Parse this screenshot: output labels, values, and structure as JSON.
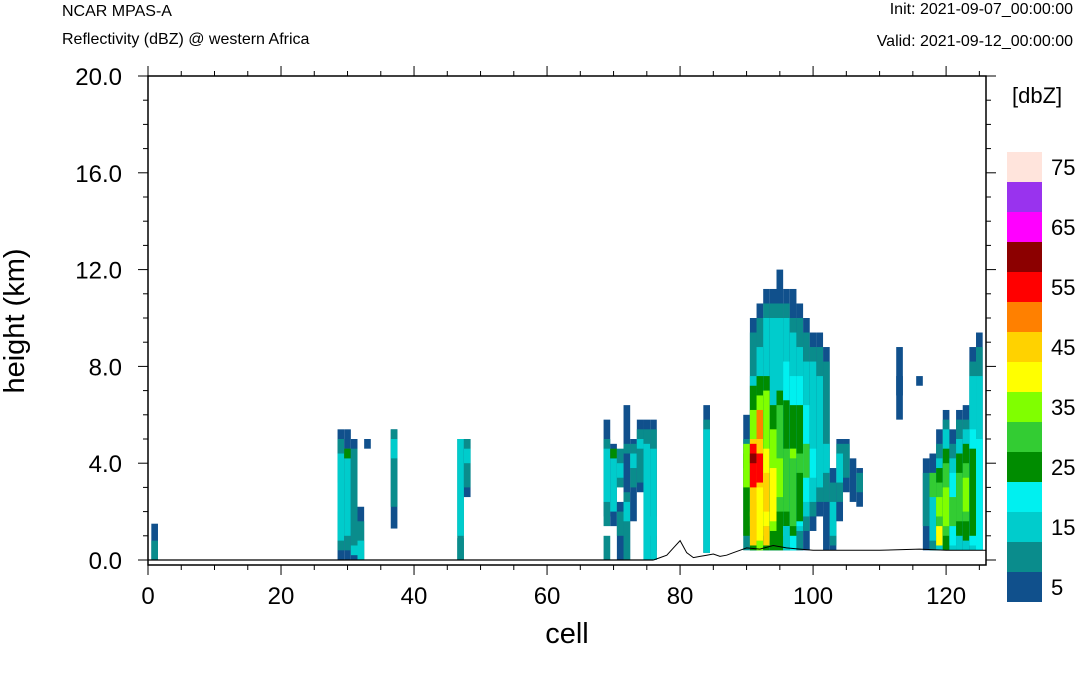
{
  "header": {
    "model": "NCAR MPAS-A",
    "field": "Reflectivity (dBZ) @ western Africa",
    "init": "Init: 2021-09-07_00:00:00",
    "valid": "Valid: 2021-09-12_00:00:00"
  },
  "chart_data": {
    "type": "heatmap",
    "xlabel": "cell",
    "ylabel": "height (km)",
    "xlim": [
      0,
      126
    ],
    "ylim": [
      0,
      20
    ],
    "x_ticks": [
      "0",
      "20",
      "40",
      "60",
      "80",
      "100",
      "120"
    ],
    "y_ticks": [
      "0.0",
      "4.0",
      "8.0",
      "12.0",
      "16.0",
      "20.0"
    ],
    "colorbar": {
      "unit": "[dbZ]",
      "labels": [
        "5",
        "15",
        "25",
        "35",
        "45",
        "55",
        "65",
        "75"
      ],
      "levels": [
        5,
        10,
        15,
        20,
        25,
        30,
        35,
        40,
        45,
        50,
        55,
        60,
        65,
        70,
        75
      ],
      "colors": [
        "#10508c",
        "#0a8c8c",
        "#00cccc",
        "#00f0f0",
        "#008c00",
        "#33cc33",
        "#80ff00",
        "#ffff00",
        "#ffd200",
        "#ff8000",
        "#ff0000",
        "#8c0000",
        "#ff00ff",
        "#9933ee",
        "#ffe4dc"
      ]
    },
    "columns": [
      {
        "x": 1,
        "segments": [
          [
            0.0,
            1.5,
            5
          ],
          [
            0.0,
            0.8,
            10
          ]
        ]
      },
      {
        "x": 29,
        "segments": [
          [
            0.0,
            5.4,
            5
          ],
          [
            0.4,
            5.0,
            10
          ],
          [
            0.8,
            4.4,
            15
          ],
          [
            2.0,
            3.2,
            15
          ]
        ]
      },
      {
        "x": 30,
        "segments": [
          [
            0.0,
            5.4,
            5
          ],
          [
            0.4,
            4.6,
            10
          ],
          [
            1.0,
            4.2,
            15
          ],
          [
            4.2,
            4.6,
            25
          ]
        ]
      },
      {
        "x": 31,
        "segments": [
          [
            0.0,
            5.0,
            5
          ],
          [
            0.4,
            4.6,
            10
          ],
          [
            0.2,
            0.6,
            15
          ]
        ]
      },
      {
        "x": 32,
        "segments": [
          [
            0.0,
            2.2,
            5
          ],
          [
            0.0,
            1.6,
            10
          ],
          [
            0.0,
            0.8,
            15
          ]
        ]
      },
      {
        "x": 33,
        "segments": [
          [
            4.6,
            5.0,
            5
          ]
        ]
      },
      {
        "x": 37,
        "segments": [
          [
            1.3,
            5.4,
            5
          ],
          [
            2.2,
            5.4,
            10
          ],
          [
            4.2,
            5.0,
            15
          ]
        ]
      },
      {
        "x": 47,
        "segments": [
          [
            0.0,
            5.0,
            10
          ],
          [
            0.0,
            0.9,
            10
          ],
          [
            1.0,
            5.0,
            15
          ]
        ]
      },
      {
        "x": 48,
        "segments": [
          [
            2.6,
            5.0,
            5
          ],
          [
            3.0,
            5.0,
            10
          ],
          [
            4.0,
            4.6,
            15
          ]
        ]
      },
      {
        "x": 69,
        "segments": [
          [
            1.8,
            5.8,
            5
          ],
          [
            1.4,
            5.0,
            10
          ],
          [
            2.4,
            4.6,
            15
          ],
          [
            0.0,
            1.0,
            10
          ]
        ]
      },
      {
        "x": 70,
        "segments": [
          [
            1.4,
            4.8,
            5
          ],
          [
            2.0,
            4.2,
            15
          ],
          [
            4.2,
            4.6,
            25
          ]
        ]
      },
      {
        "x": 71,
        "segments": [
          [
            0.0,
            2.4,
            5
          ],
          [
            1.0,
            2.0,
            10
          ],
          [
            3.0,
            4.6,
            10
          ],
          [
            3.4,
            4.0,
            15
          ]
        ]
      },
      {
        "x": 72,
        "segments": [
          [
            0.0,
            6.4,
            5
          ],
          [
            0.0,
            2.8,
            10
          ],
          [
            1.6,
            2.4,
            15
          ],
          [
            4.4,
            4.8,
            10
          ]
        ]
      },
      {
        "x": 73,
        "segments": [
          [
            1.6,
            5.0,
            5
          ],
          [
            3.0,
            4.8,
            10
          ],
          [
            3.8,
            4.4,
            15
          ]
        ]
      },
      {
        "x": 74,
        "segments": [
          [
            2.8,
            5.8,
            5
          ],
          [
            3.2,
            5.4,
            10
          ],
          [
            4.6,
            5.0,
            15
          ]
        ]
      },
      {
        "x": 75,
        "segments": [
          [
            0.0,
            5.8,
            5
          ],
          [
            0.0,
            5.4,
            10
          ],
          [
            0.0,
            4.8,
            15
          ]
        ]
      },
      {
        "x": 76,
        "segments": [
          [
            0.0,
            5.8,
            5
          ],
          [
            0.4,
            5.4,
            10
          ],
          [
            1.0,
            4.6,
            15
          ],
          [
            0.0,
            1.8,
            15
          ]
        ]
      },
      {
        "x": 84,
        "segments": [
          [
            0.3,
            6.4,
            5
          ],
          [
            0.3,
            5.8,
            10
          ],
          [
            0.3,
            5.4,
            15
          ]
        ]
      },
      {
        "x": 90,
        "segments": [
          [
            3.8,
            6.0,
            5
          ],
          [
            0.4,
            5.0,
            10
          ],
          [
            1.0,
            4.4,
            25
          ],
          [
            3.0,
            4.8,
            35
          ]
        ]
      },
      {
        "x": 91,
        "segments": [
          [
            0.4,
            10.0,
            5
          ],
          [
            0.4,
            9.4,
            10
          ],
          [
            0.4,
            7.6,
            15
          ],
          [
            0.4,
            7.2,
            25
          ],
          [
            1.4,
            6.2,
            35
          ],
          [
            1.8,
            5.0,
            45
          ],
          [
            3.0,
            4.8,
            55
          ],
          [
            4.0,
            4.4,
            60
          ],
          [
            0.6,
            2.0,
            45
          ]
        ]
      },
      {
        "x": 92,
        "segments": [
          [
            0.4,
            10.6,
            5
          ],
          [
            0.4,
            10.0,
            10
          ],
          [
            0.4,
            8.8,
            15
          ],
          [
            0.4,
            7.6,
            25
          ],
          [
            0.4,
            6.8,
            35
          ],
          [
            0.8,
            6.2,
            50
          ],
          [
            2.4,
            5.0,
            45
          ],
          [
            3.2,
            4.4,
            55
          ],
          [
            0.8,
            3.0,
            40
          ]
        ]
      },
      {
        "x": 93,
        "segments": [
          [
            0.4,
            11.2,
            5
          ],
          [
            0.4,
            10.6,
            10
          ],
          [
            0.4,
            10.0,
            15
          ],
          [
            0.4,
            7.6,
            25
          ],
          [
            1.0,
            7.0,
            35
          ],
          [
            1.4,
            4.6,
            40
          ],
          [
            2.0,
            3.6,
            45
          ],
          [
            0.6,
            1.4,
            45
          ]
        ]
      },
      {
        "x": 94,
        "segments": [
          [
            0.4,
            11.2,
            5
          ],
          [
            0.4,
            10.6,
            10
          ],
          [
            0.4,
            10.0,
            15
          ],
          [
            0.4,
            6.4,
            25
          ],
          [
            0.8,
            5.4,
            35
          ],
          [
            1.6,
            3.8,
            40
          ],
          [
            0.6,
            1.2,
            25
          ]
        ]
      },
      {
        "x": 95,
        "segments": [
          [
            0.4,
            12.0,
            5
          ],
          [
            0.4,
            10.6,
            10
          ],
          [
            0.4,
            10.0,
            15
          ],
          [
            0.4,
            7.0,
            25
          ],
          [
            1.0,
            6.4,
            30
          ],
          [
            2.6,
            4.2,
            35
          ],
          [
            0.6,
            2.0,
            25
          ]
        ]
      },
      {
        "x": 96,
        "segments": [
          [
            0.4,
            11.2,
            5
          ],
          [
            0.4,
            10.6,
            10
          ],
          [
            0.4,
            10.0,
            15
          ],
          [
            1.0,
            8.2,
            20
          ],
          [
            1.4,
            6.6,
            25
          ],
          [
            2.0,
            4.6,
            30
          ],
          [
            0.4,
            1.4,
            15
          ]
        ]
      },
      {
        "x": 97,
        "segments": [
          [
            0.4,
            11.2,
            5
          ],
          [
            0.4,
            10.0,
            10
          ],
          [
            0.4,
            9.4,
            15
          ],
          [
            0.4,
            7.6,
            20
          ],
          [
            1.0,
            6.4,
            25
          ],
          [
            1.4,
            4.6,
            30
          ],
          [
            4.2,
            4.6,
            35
          ]
        ]
      },
      {
        "x": 98,
        "segments": [
          [
            0.4,
            10.6,
            5
          ],
          [
            0.4,
            10.0,
            10
          ],
          [
            1.2,
            8.8,
            15
          ],
          [
            1.4,
            7.6,
            20
          ],
          [
            1.6,
            6.4,
            25
          ],
          [
            3.6,
            4.4,
            30
          ]
        ]
      },
      {
        "x": 99,
        "segments": [
          [
            0.4,
            10.0,
            5
          ],
          [
            1.2,
            9.4,
            10
          ],
          [
            1.8,
            8.2,
            15
          ],
          [
            2.4,
            6.4,
            20
          ],
          [
            3.4,
            4.8,
            30
          ]
        ]
      },
      {
        "x": 100,
        "segments": [
          [
            1.2,
            9.4,
            5
          ],
          [
            1.8,
            8.8,
            10
          ],
          [
            2.4,
            8.2,
            15
          ],
          [
            3.4,
            4.6,
            20
          ]
        ]
      },
      {
        "x": 101,
        "segments": [
          [
            1.8,
            9.4,
            5
          ],
          [
            2.4,
            8.8,
            10
          ],
          [
            3.0,
            7.6,
            15
          ]
        ]
      },
      {
        "x": 102,
        "segments": [
          [
            0.4,
            8.8,
            5
          ],
          [
            2.4,
            8.2,
            10
          ],
          [
            3.6,
            4.8,
            15
          ]
        ]
      },
      {
        "x": 103,
        "segments": [
          [
            0.4,
            3.8,
            5
          ],
          [
            0.6,
            3.2,
            10
          ],
          [
            1.0,
            2.4,
            15
          ]
        ]
      },
      {
        "x": 104,
        "segments": [
          [
            1.6,
            5.0,
            5
          ],
          [
            2.4,
            4.8,
            10
          ],
          [
            3.2,
            4.4,
            15
          ]
        ]
      },
      {
        "x": 105,
        "segments": [
          [
            2.8,
            5.0,
            5
          ],
          [
            3.4,
            4.8,
            10
          ]
        ]
      },
      {
        "x": 106,
        "segments": [
          [
            2.4,
            4.2,
            5
          ]
        ]
      },
      {
        "x": 107,
        "segments": [
          [
            2.2,
            3.8,
            5
          ],
          [
            2.8,
            3.6,
            10
          ]
        ]
      },
      {
        "x": 113,
        "segments": [
          [
            5.8,
            8.8,
            5
          ],
          [
            6.8,
            7.6,
            5
          ]
        ]
      },
      {
        "x": 116,
        "segments": [
          [
            7.2,
            7.6,
            5
          ]
        ]
      },
      {
        "x": 117,
        "segments": [
          [
            0.4,
            4.2,
            5
          ],
          [
            1.4,
            3.6,
            10
          ]
        ]
      },
      {
        "x": 118,
        "segments": [
          [
            0.4,
            4.4,
            5
          ],
          [
            0.4,
            3.6,
            10
          ],
          [
            0.8,
            2.8,
            15
          ],
          [
            2.6,
            3.6,
            30
          ]
        ]
      },
      {
        "x": 119,
        "segments": [
          [
            0.4,
            5.4,
            5
          ],
          [
            0.4,
            4.8,
            10
          ],
          [
            0.4,
            4.2,
            15
          ],
          [
            0.6,
            3.8,
            25
          ],
          [
            1.0,
            3.2,
            30
          ],
          [
            1.8,
            2.6,
            35
          ],
          [
            0.6,
            1.4,
            40
          ]
        ]
      },
      {
        "x": 120,
        "segments": [
          [
            0.4,
            6.2,
            5
          ],
          [
            0.4,
            5.8,
            10
          ],
          [
            0.4,
            5.4,
            15
          ],
          [
            0.4,
            4.6,
            25
          ],
          [
            1.0,
            4.0,
            30
          ],
          [
            1.4,
            3.0,
            35
          ]
        ]
      },
      {
        "x": 121,
        "segments": [
          [
            0.4,
            5.4,
            5
          ],
          [
            0.4,
            4.8,
            10
          ],
          [
            0.4,
            4.2,
            15
          ],
          [
            0.6,
            3.6,
            20
          ],
          [
            1.4,
            2.6,
            30
          ]
        ]
      },
      {
        "x": 122,
        "segments": [
          [
            0.4,
            6.2,
            5
          ],
          [
            0.4,
            5.8,
            10
          ],
          [
            0.4,
            5.0,
            15
          ],
          [
            1.0,
            4.4,
            25
          ],
          [
            1.6,
            3.6,
            30
          ]
        ]
      },
      {
        "x": 123,
        "segments": [
          [
            0.4,
            6.4,
            5
          ],
          [
            0.4,
            5.8,
            10
          ],
          [
            0.4,
            5.4,
            15
          ],
          [
            0.8,
            4.8,
            25
          ],
          [
            1.6,
            4.0,
            30
          ],
          [
            2.0,
            3.4,
            35
          ]
        ]
      },
      {
        "x": 124,
        "segments": [
          [
            0.4,
            8.8,
            5
          ],
          [
            0.4,
            8.2,
            10
          ],
          [
            0.4,
            7.6,
            15
          ],
          [
            0.6,
            5.4,
            20
          ],
          [
            1.0,
            4.6,
            25
          ]
        ]
      },
      {
        "x": 125,
        "segments": [
          [
            0.4,
            9.4,
            5
          ],
          [
            0.4,
            8.8,
            10
          ],
          [
            0.4,
            7.6,
            15
          ],
          [
            0.4,
            5.0,
            20
          ]
        ]
      }
    ],
    "terrain": [
      [
        76,
        0.0
      ],
      [
        77,
        0.1
      ],
      [
        78,
        0.2
      ],
      [
        79,
        0.5
      ],
      [
        80,
        0.8
      ],
      [
        81,
        0.3
      ],
      [
        82,
        0.1
      ],
      [
        83,
        0.15
      ],
      [
        84,
        0.2
      ],
      [
        85,
        0.25
      ],
      [
        86,
        0.15
      ],
      [
        87,
        0.2
      ],
      [
        88,
        0.3
      ],
      [
        89,
        0.4
      ],
      [
        90,
        0.5
      ],
      [
        92,
        0.45
      ],
      [
        94,
        0.6
      ],
      [
        96,
        0.5
      ],
      [
        98,
        0.45
      ],
      [
        100,
        0.4
      ],
      [
        104,
        0.4
      ],
      [
        110,
        0.4
      ],
      [
        116,
        0.45
      ],
      [
        120,
        0.4
      ],
      [
        126,
        0.4
      ]
    ]
  }
}
